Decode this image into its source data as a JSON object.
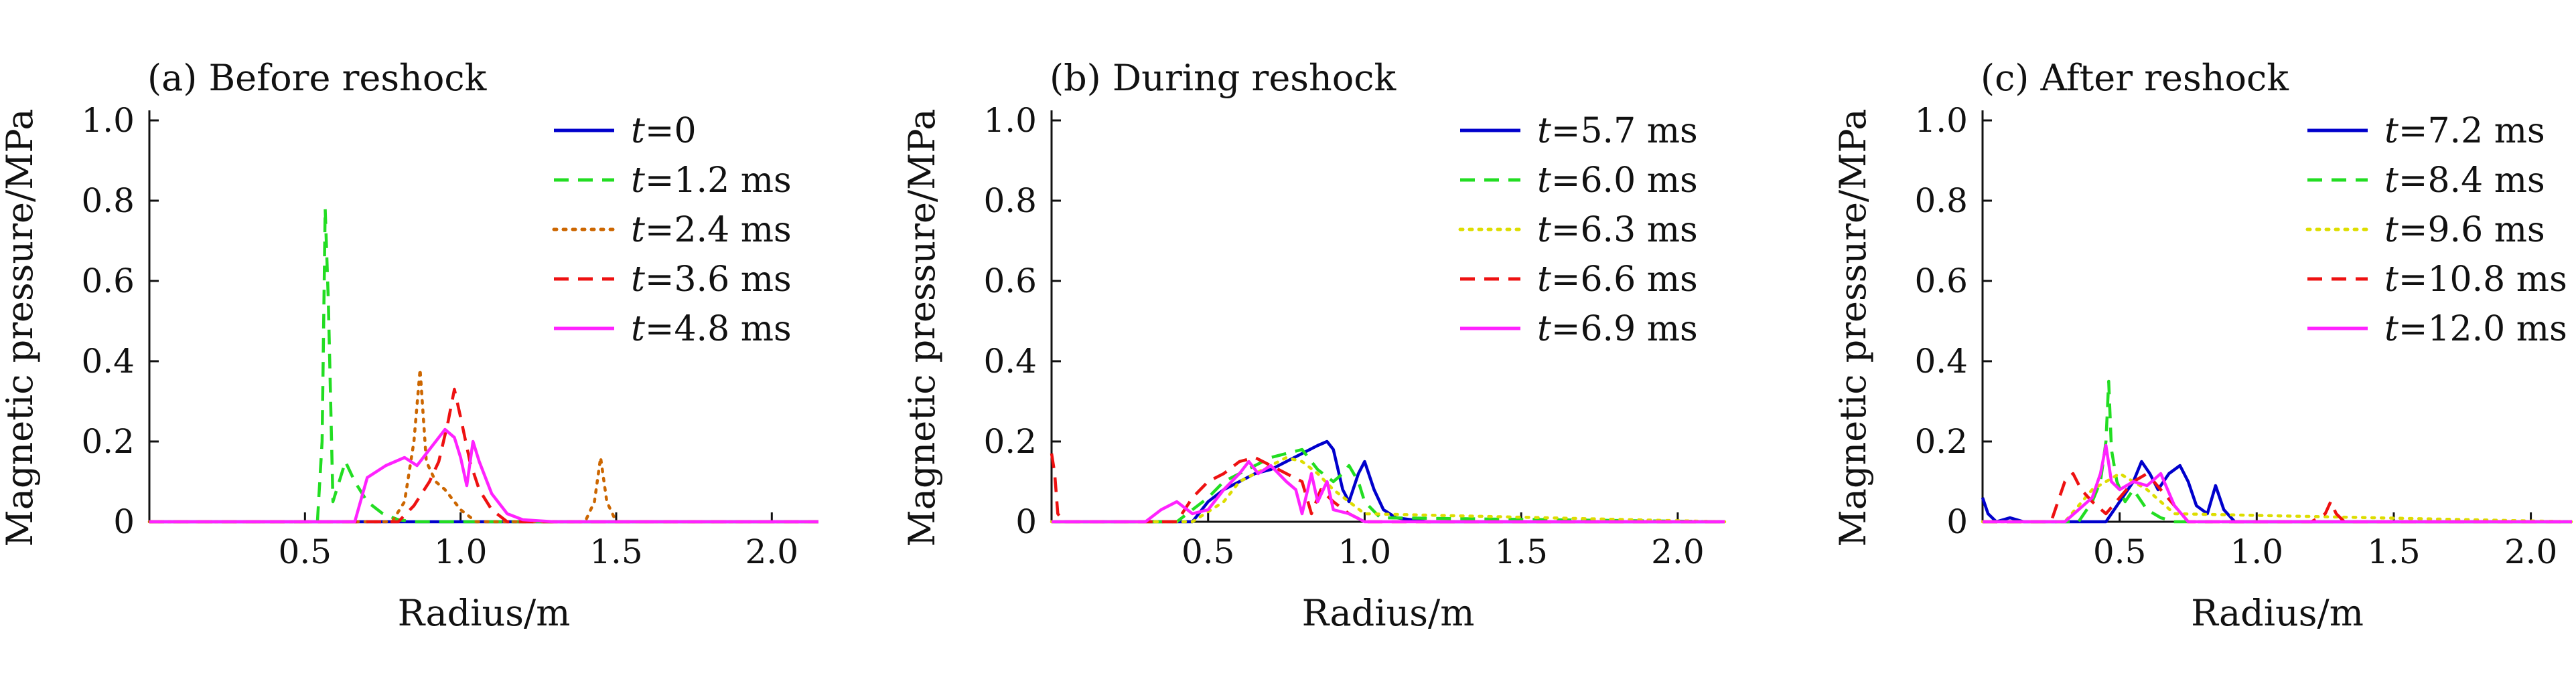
{
  "figure": {
    "panels": [
      {
        "label": "(a) Before reshock"
      },
      {
        "label": "(b) During reshock"
      },
      {
        "label": "(c) After reshock"
      }
    ]
  },
  "chart_data": [
    {
      "type": "line",
      "title": "(a) Before reshock",
      "xlabel": "Radius/m",
      "ylabel": "Magnetic pressure/MPa",
      "xlim": [
        0,
        2.15
      ],
      "ylim": [
        0,
        1.0
      ],
      "xticks": [
        0.5,
        1.0,
        1.5,
        2.0
      ],
      "xtick_labels": [
        "0.5",
        "1.0",
        "1.5",
        "2.0"
      ],
      "yticks": [
        0,
        0.2,
        0.4,
        0.6,
        0.8,
        1.0
      ],
      "ytick_labels": [
        "0",
        "0.2",
        "0.4",
        "0.6",
        "0.8",
        "1.0"
      ],
      "legend_position": "top-right",
      "series": [
        {
          "name": "t=0",
          "legend_italic": "t",
          "legend_rest": "=0",
          "color": "#0000cc",
          "dash": "solid",
          "x": [
            0,
            2.15
          ],
          "y": [
            0,
            0
          ]
        },
        {
          "name": "t=1.2 ms",
          "legend_italic": "t",
          "legend_rest": "=1.2 ms",
          "color": "#22dd22",
          "dash": "dashed",
          "x": [
            0,
            0.54,
            0.555,
            0.565,
            0.575,
            0.59,
            0.61,
            0.63,
            0.66,
            0.7,
            0.75,
            0.8,
            0.85,
            2.15
          ],
          "y": [
            0,
            0,
            0.2,
            0.78,
            0.55,
            0.05,
            0.1,
            0.15,
            0.1,
            0.05,
            0.02,
            0.005,
            0,
            0
          ]
        },
        {
          "name": "t=2.4 ms",
          "legend_italic": "t",
          "legend_rest": "=2.4 ms",
          "color": "#cc6600",
          "dash": "dotted",
          "x": [
            0,
            0.78,
            0.82,
            0.85,
            0.87,
            0.89,
            0.92,
            0.95,
            0.98,
            1.0,
            1.05,
            1.4,
            1.43,
            1.45,
            1.47,
            1.5,
            2.15
          ],
          "y": [
            0,
            0,
            0.05,
            0.2,
            0.38,
            0.15,
            0.1,
            0.08,
            0.05,
            0.03,
            0,
            0,
            0.05,
            0.16,
            0.05,
            0,
            0
          ]
        },
        {
          "name": "t=3.6 ms",
          "legend_italic": "t",
          "legend_rest": "=3.6 ms",
          "color": "#ee1111",
          "dash": "dashed",
          "x": [
            0,
            0.8,
            0.85,
            0.9,
            0.93,
            0.96,
            0.98,
            1.0,
            1.03,
            1.06,
            1.1,
            1.15,
            2.15
          ],
          "y": [
            0,
            0,
            0.04,
            0.1,
            0.15,
            0.25,
            0.33,
            0.26,
            0.15,
            0.08,
            0.03,
            0,
            0
          ]
        },
        {
          "name": "t=4.8 ms",
          "legend_italic": "t",
          "legend_rest": "=4.8 ms",
          "color": "#ff22ff",
          "dash": "solid",
          "x": [
            0,
            0.66,
            0.7,
            0.76,
            0.82,
            0.86,
            0.9,
            0.95,
            0.98,
            1.0,
            1.02,
            1.04,
            1.06,
            1.1,
            1.15,
            1.2,
            1.3,
            1.4,
            2.15
          ],
          "y": [
            0,
            0,
            0.11,
            0.14,
            0.16,
            0.14,
            0.18,
            0.23,
            0.21,
            0.16,
            0.09,
            0.2,
            0.15,
            0.07,
            0.02,
            0.005,
            0,
            0,
            0
          ]
        }
      ]
    },
    {
      "type": "line",
      "title": "(b) During reshock",
      "xlabel": "Radius/m",
      "ylabel": "Magnetic pressure/MPa",
      "xlim": [
        0,
        2.15
      ],
      "ylim": [
        0,
        1.0
      ],
      "xticks": [
        0.5,
        1.0,
        1.5,
        2.0
      ],
      "xtick_labels": [
        "0.5",
        "1.0",
        "1.5",
        "2.0"
      ],
      "yticks": [
        0,
        0.2,
        0.4,
        0.6,
        0.8,
        1.0
      ],
      "ytick_labels": [
        "0",
        "0.2",
        "0.4",
        "0.6",
        "0.8",
        "1.0"
      ],
      "legend_position": "top-right",
      "series": [
        {
          "name": "t=5.7 ms",
          "legend_italic": "t",
          "legend_rest": "=5.7 ms",
          "color": "#0000cc",
          "dash": "solid",
          "x": [
            0,
            0.45,
            0.5,
            0.55,
            0.6,
            0.65,
            0.7,
            0.75,
            0.8,
            0.85,
            0.88,
            0.9,
            0.93,
            0.95,
            0.98,
            1.0,
            1.03,
            1.06,
            1.1,
            1.2,
            2.15
          ],
          "y": [
            0,
            0,
            0.05,
            0.08,
            0.1,
            0.12,
            0.13,
            0.15,
            0.17,
            0.19,
            0.2,
            0.18,
            0.08,
            0.05,
            0.12,
            0.15,
            0.08,
            0.03,
            0.01,
            0,
            0
          ]
        },
        {
          "name": "t=6.0 ms",
          "legend_italic": "t",
          "legend_rest": "=6.0 ms",
          "color": "#22dd22",
          "dash": "dashed",
          "x": [
            0,
            0.4,
            0.45,
            0.5,
            0.55,
            0.6,
            0.65,
            0.7,
            0.75,
            0.8,
            0.85,
            0.9,
            0.93,
            0.95,
            0.98,
            1.0,
            1.05,
            2.15
          ],
          "y": [
            0,
            0,
            0.03,
            0.06,
            0.1,
            0.12,
            0.14,
            0.16,
            0.17,
            0.18,
            0.13,
            0.1,
            0.12,
            0.14,
            0.1,
            0.05,
            0.01,
            0
          ]
        },
        {
          "name": "t=6.3 ms",
          "legend_italic": "t",
          "legend_rest": "=6.3 ms",
          "color": "#dddd00",
          "dash": "dotted",
          "x": [
            0,
            0.45,
            0.55,
            0.6,
            0.65,
            0.7,
            0.75,
            0.8,
            0.85,
            0.9,
            0.95,
            1.0,
            2.15
          ],
          "y": [
            0,
            0,
            0.05,
            0.1,
            0.12,
            0.14,
            0.16,
            0.15,
            0.12,
            0.08,
            0.05,
            0.02,
            0
          ]
        },
        {
          "name": "t=6.6 ms",
          "legend_italic": "t",
          "legend_rest": "=6.6 ms",
          "color": "#ee1111",
          "dash": "dashed",
          "x": [
            0,
            0.01,
            0.02,
            0.04,
            0.1,
            0.4,
            0.45,
            0.5,
            0.55,
            0.6,
            0.65,
            0.7,
            0.75,
            0.8,
            0.83,
            0.86,
            0.9,
            0.95,
            1.0,
            2.15
          ],
          "y": [
            0.17,
            0.12,
            0.02,
            0,
            0,
            0,
            0.06,
            0.1,
            0.12,
            0.15,
            0.16,
            0.14,
            0.12,
            0.1,
            0.02,
            0.08,
            0.05,
            0.02,
            0,
            0
          ]
        },
        {
          "name": "t=6.9 ms",
          "legend_italic": "t",
          "legend_rest": "=6.9 ms",
          "color": "#ff22ff",
          "dash": "solid",
          "x": [
            0,
            0.3,
            0.35,
            0.4,
            0.45,
            0.5,
            0.55,
            0.6,
            0.63,
            0.66,
            0.7,
            0.75,
            0.78,
            0.8,
            0.83,
            0.85,
            0.88,
            0.9,
            0.95,
            1.0,
            2.15
          ],
          "y": [
            0,
            0,
            0.03,
            0.05,
            0.02,
            0.03,
            0.08,
            0.12,
            0.15,
            0.12,
            0.14,
            0.1,
            0.08,
            0.02,
            0.12,
            0.05,
            0.1,
            0.03,
            0.02,
            0,
            0
          ]
        }
      ]
    },
    {
      "type": "line",
      "title": "(c) After reshock",
      "xlabel": "Radius/m",
      "ylabel": "Magnetic pressure/MPa",
      "xlim": [
        0,
        2.15
      ],
      "ylim": [
        0,
        1.0
      ],
      "xticks": [
        0.5,
        1.0,
        1.5,
        2.0
      ],
      "xtick_labels": [
        "0.5",
        "1.0",
        "1.5",
        "2.0"
      ],
      "yticks": [
        0,
        0.2,
        0.4,
        0.6,
        0.8,
        1.0
      ],
      "ytick_labels": [
        "0",
        "0.2",
        "0.4",
        "0.6",
        "0.8",
        "1.0"
      ],
      "legend_position": "top-right",
      "series": [
        {
          "name": "t=7.2 ms",
          "legend_italic": "t",
          "legend_rest": "=7.2 ms",
          "color": "#0000cc",
          "dash": "solid",
          "x": [
            0,
            0.02,
            0.05,
            0.1,
            0.15,
            0.45,
            0.5,
            0.55,
            0.58,
            0.61,
            0.64,
            0.68,
            0.72,
            0.75,
            0.78,
            0.82,
            0.85,
            0.88,
            0.92,
            1.0,
            2.15
          ],
          "y": [
            0.06,
            0.02,
            0,
            0.01,
            0,
            0,
            0.05,
            0.1,
            0.15,
            0.12,
            0.08,
            0.12,
            0.14,
            0.1,
            0.04,
            0.02,
            0.09,
            0.03,
            0,
            0,
            0
          ]
        },
        {
          "name": "t=8.4 ms",
          "legend_italic": "t",
          "legend_rest": "=8.4 ms",
          "color": "#22dd22",
          "dash": "dashed",
          "x": [
            0,
            0.35,
            0.4,
            0.43,
            0.45,
            0.46,
            0.47,
            0.49,
            0.52,
            0.55,
            0.6,
            0.65,
            0.7,
            2.15
          ],
          "y": [
            0,
            0,
            0.05,
            0.1,
            0.2,
            0.35,
            0.18,
            0.1,
            0.05,
            0.08,
            0.03,
            0.01,
            0,
            0
          ]
        },
        {
          "name": "t=9.6 ms",
          "legend_italic": "t",
          "legend_rest": "=9.6 ms",
          "color": "#dddd00",
          "dash": "dotted",
          "x": [
            0,
            0.3,
            0.35,
            0.4,
            0.45,
            0.5,
            0.55,
            0.6,
            0.65,
            0.7,
            2.15
          ],
          "y": [
            0,
            0,
            0.04,
            0.08,
            0.1,
            0.12,
            0.1,
            0.08,
            0.05,
            0.02,
            0
          ]
        },
        {
          "name": "t=10.8 ms",
          "legend_italic": "t",
          "legend_rest": "=10.8 ms",
          "color": "#ee1111",
          "dash": "dashed",
          "x": [
            0,
            0.25,
            0.3,
            0.33,
            0.36,
            0.4,
            0.45,
            0.5,
            0.55,
            0.6,
            0.65,
            0.7,
            0.75,
            1.2,
            1.25,
            1.27,
            1.29,
            1.32,
            2.15
          ],
          "y": [
            0,
            0,
            0.1,
            0.12,
            0.08,
            0.05,
            0.02,
            0.06,
            0.1,
            0.12,
            0.08,
            0.04,
            0,
            0,
            0.02,
            0.05,
            0.02,
            0,
            0
          ]
        },
        {
          "name": "t=12.0 ms",
          "legend_italic": "t",
          "legend_rest": "=12.0 ms",
          "color": "#ff22ff",
          "dash": "solid",
          "x": [
            0,
            0.3,
            0.35,
            0.4,
            0.43,
            0.45,
            0.47,
            0.5,
            0.55,
            0.6,
            0.65,
            0.7,
            0.75,
            2.15
          ],
          "y": [
            0,
            0,
            0.03,
            0.06,
            0.12,
            0.19,
            0.1,
            0.08,
            0.1,
            0.09,
            0.12,
            0.04,
            0,
            0
          ]
        }
      ]
    }
  ]
}
